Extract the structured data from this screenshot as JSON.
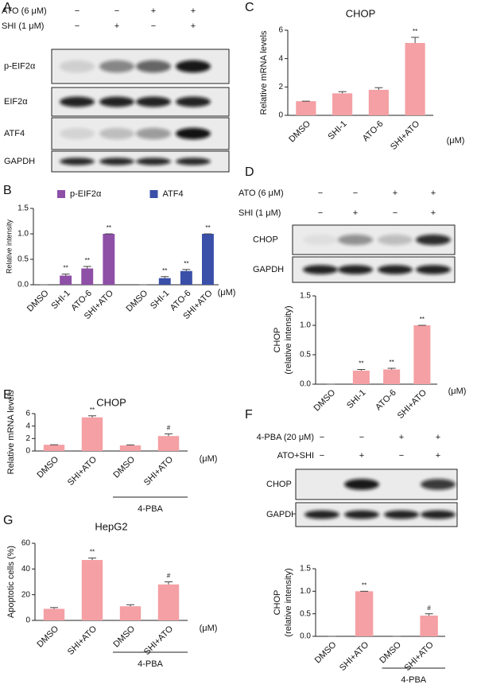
{
  "panel_labels": [
    "A",
    "B",
    "C",
    "D",
    "E",
    "F",
    "G"
  ],
  "blots": [
    {
      "treatments": [
        {
          "label": "ATO (6 μM)",
          "signs": [
            "−",
            "−",
            "+",
            "+"
          ]
        },
        {
          "label": "SHI (1 μM)",
          "signs": [
            "−",
            "+",
            "−",
            "+"
          ]
        }
      ],
      "rows": [
        "p-EIF2α",
        "EIF2α",
        "ATF4",
        "GAPDH"
      ]
    },
    {
      "treatments": [
        {
          "label": "ATO (6 μM)",
          "signs": [
            "−",
            "−",
            "+",
            "+"
          ]
        },
        {
          "label": "SHI (1 μM)",
          "signs": [
            "−",
            "+",
            "−",
            "+"
          ]
        }
      ],
      "rows": [
        "CHOP",
        "GAPDH"
      ]
    },
    {
      "treatments": [
        {
          "label": "4-PBA (20 μM)",
          "signs": [
            "−",
            "−",
            "+",
            "+"
          ]
        },
        {
          "label": "ATO+SHI",
          "signs": [
            "−",
            "+",
            "−",
            "+"
          ]
        }
      ],
      "rows": [
        "CHOP",
        "GAPDH"
      ]
    }
  ],
  "chart_data": [
    {
      "type": "bar",
      "y_label": "Relative intensity",
      "x_unit": "(μM)",
      "categories": [
        "DMSO",
        "SHI-1",
        "ATO-6",
        "SHI+ATO"
      ],
      "series": [
        {
          "name": "p-EIF2α",
          "color": "#8e4fa6",
          "values": [
            0,
            0.18,
            0.32,
            1.0
          ],
          "errors": [
            0,
            0.03,
            0.04,
            0
          ],
          "annotations": [
            null,
            "**",
            "**",
            "**"
          ]
        },
        {
          "name": "ATF4",
          "color": "#3a4fa8",
          "values": [
            0,
            0.13,
            0.27,
            1.0
          ],
          "errors": [
            0,
            0.03,
            0.03,
            0
          ],
          "annotations": [
            null,
            "**",
            "**",
            "**"
          ]
        }
      ],
      "ylim": [
        0,
        1.5
      ],
      "yticks": [
        {
          "value": 0,
          "label": "0.0"
        },
        {
          "value": 0.5,
          "label": "0.5"
        },
        {
          "value": 1,
          "label": "1.0"
        },
        {
          "value": 1.5,
          "label": "1.5"
        }
      ]
    },
    {
      "type": "bar",
      "title": "CHOP",
      "y_label": "Relative mRNA levels",
      "x_unit": "(μM)",
      "categories": [
        "DMSO",
        "SHI-1",
        "ATO-6",
        "SHI+ATO"
      ],
      "series": [
        {
          "color": "#f4a0a4",
          "values": [
            1,
            1.55,
            1.8,
            5.1
          ],
          "errors": [
            0,
            0.12,
            0.15,
            0.4
          ],
          "annotations": [
            null,
            null,
            null,
            "**"
          ]
        }
      ],
      "ylim": [
        0,
        6
      ],
      "yticks": [
        0,
        2,
        4,
        6
      ]
    },
    {
      "type": "bar",
      "y_label": [
        "CHOP",
        "(relative intensity)"
      ],
      "x_unit": "(μM)",
      "categories": [
        "DMSO",
        "SHI-1",
        "ATO-6",
        "SHI+ATO"
      ],
      "series": [
        {
          "color": "#f4a0a4",
          "values": [
            0,
            0.23,
            0.25,
            1.0
          ],
          "errors": [
            0,
            0.02,
            0.02,
            0
          ],
          "annotations": [
            null,
            "**",
            "**",
            "**"
          ]
        }
      ],
      "ylim": [
        0,
        1.5
      ],
      "yticks": [
        {
          "value": 0,
          "label": "0.0"
        },
        {
          "value": 0.5,
          "label": "0.5"
        },
        {
          "value": 1,
          "label": "1.0"
        },
        {
          "value": 1.5,
          "label": "1.5"
        }
      ]
    },
    {
      "type": "bar",
      "title": "CHOP",
      "y_label": "Relative mRNA levels",
      "x_unit": "(μM)",
      "group_label": "4-PBA",
      "categories": [
        "DMSO",
        "SHI+ATO",
        "DMSO",
        "SHI+ATO"
      ],
      "series": [
        {
          "color": "#f4a0a4",
          "values": [
            1,
            5.4,
            0.9,
            2.4
          ],
          "errors": [
            0,
            0.25,
            0.08,
            0.35
          ],
          "annotations": [
            null,
            "**",
            null,
            "#"
          ]
        }
      ],
      "ylim": [
        0,
        6
      ],
      "yticks": [
        0,
        2,
        4,
        6
      ]
    },
    {
      "type": "bar",
      "y_label": [
        "CHOP",
        "(relative intensity)"
      ],
      "group_label": "4-PBA",
      "categories": [
        "DMSO",
        "SHI+ATO",
        "DMSO",
        "SHI+ATO"
      ],
      "series": [
        {
          "color": "#f4a0a4",
          "values": [
            0,
            1.0,
            0,
            0.46
          ],
          "errors": [
            0,
            0,
            0,
            0.04
          ],
          "annotations": [
            null,
            "**",
            null,
            "#"
          ]
        }
      ],
      "ylim": [
        0,
        1.5
      ],
      "yticks": [
        {
          "value": 0,
          "label": "0.0"
        },
        {
          "value": 0.5,
          "label": "0.5"
        },
        {
          "value": 1,
          "label": "1.0"
        },
        {
          "value": 1.5,
          "label": "1.5"
        }
      ]
    },
    {
      "type": "bar",
      "title": "HepG2",
      "y_label": "Apoptotic cells (%)",
      "x_unit": "(μM)",
      "group_label": "4-PBA",
      "categories": [
        "DMSO",
        "SHI+ATO",
        "DMSO",
        "SHI+ATO"
      ],
      "series": [
        {
          "color": "#f4a0a4",
          "values": [
            9,
            47,
            11,
            28
          ],
          "errors": [
            1,
            1.5,
            1.2,
            2
          ],
          "annotations": [
            null,
            "**",
            null,
            "#"
          ]
        }
      ],
      "ylim": [
        0,
        60
      ],
      "yticks": [
        0,
        20,
        40,
        60
      ]
    }
  ]
}
